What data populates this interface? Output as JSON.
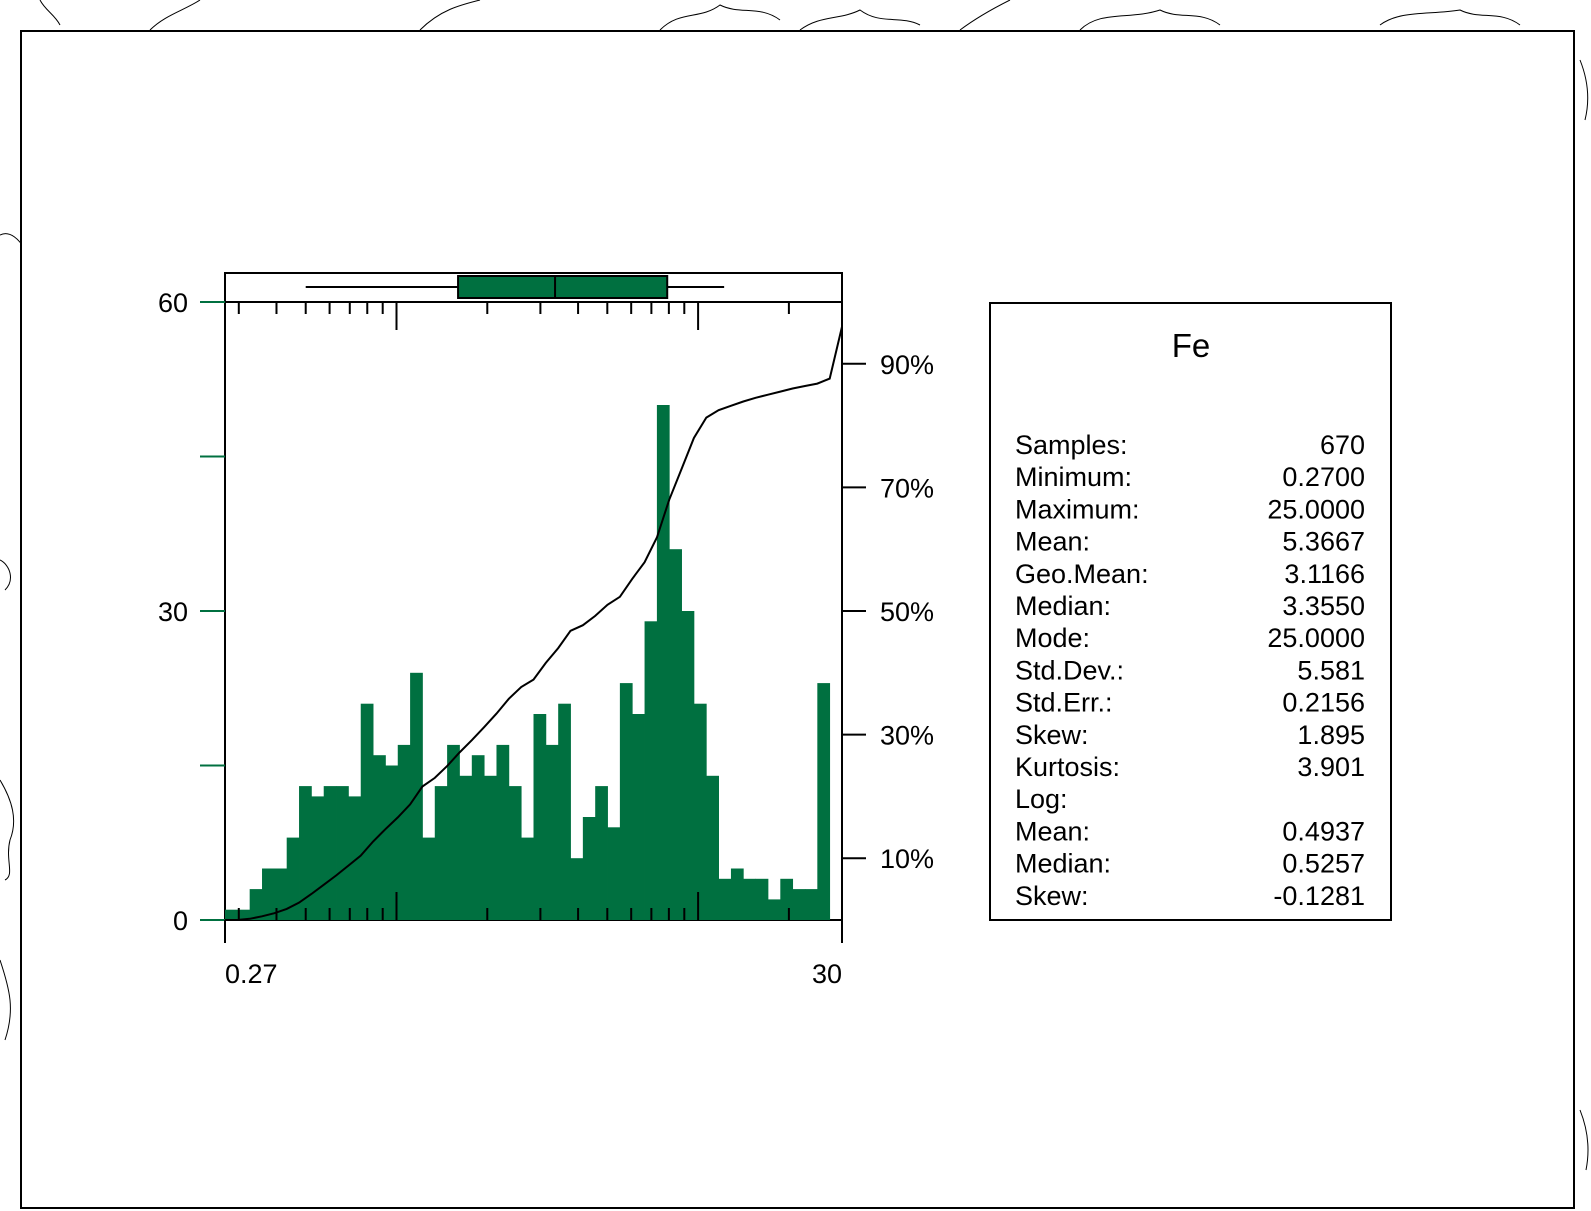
{
  "chart_data": {
    "type": "bar",
    "title": "",
    "xlabel": "",
    "ylabel": "",
    "x_scale": "log",
    "xlim": [
      0.27,
      30
    ],
    "x_tick_labels": [
      "0.27",
      "30"
    ],
    "ylim": [
      0,
      60
    ],
    "y_ticks": [
      0,
      30,
      60
    ],
    "y_tick_labels": [
      "0",
      "30",
      "60"
    ],
    "cum_pct_labels": [
      "10%",
      "30%",
      "50%",
      "70%",
      "90%"
    ],
    "bar_color": "#007040",
    "histogram": {
      "bins": 50,
      "counts": [
        1,
        1,
        3,
        5,
        5,
        8,
        13,
        12,
        13,
        13,
        12,
        21,
        16,
        15,
        17,
        24,
        8,
        13,
        17,
        14,
        16,
        14,
        17,
        13,
        8,
        20,
        17,
        21,
        6,
        10,
        13,
        9,
        23,
        20,
        29,
        50,
        36,
        30,
        21,
        14,
        4,
        5,
        4,
        4,
        2,
        4,
        3,
        3,
        23,
        0
      ]
    },
    "cumulative_percent": [
      0,
      0.2,
      0.6,
      1.1,
      1.8,
      2.8,
      4.2,
      5.7,
      7.2,
      8.8,
      10.4,
      12.7,
      14.7,
      16.6,
      18.7,
      21.6,
      23.0,
      24.9,
      27.1,
      29.1,
      31.2,
      33.4,
      35.8,
      37.7,
      38.9,
      41.6,
      44.0,
      46.8,
      47.7,
      49.2,
      51.0,
      52.3,
      55.2,
      57.9,
      61.9,
      68.0,
      73.0,
      78.0,
      81.3,
      82.5,
      83.2,
      83.9,
      84.5,
      85.0,
      85.5,
      86.0,
      86.4,
      86.8,
      87.6,
      96.0
    ]
  },
  "boxplot": {
    "whisker_low": 0.5,
    "q1": 1.6,
    "median": 3.355,
    "q3": 7.9,
    "whisker_high": 12.2
  },
  "stats": {
    "title": "Fe",
    "rows": [
      {
        "label": "Samples:",
        "value": "670"
      },
      {
        "label": "Minimum:",
        "value": "0.2700"
      },
      {
        "label": "Maximum:",
        "value": "25.0000"
      },
      {
        "label": "Mean:",
        "value": "5.3667"
      },
      {
        "label": "Geo.Mean:",
        "value": "3.1166"
      },
      {
        "label": "Median:",
        "value": "3.3550"
      },
      {
        "label": "Mode:",
        "value": "25.0000"
      },
      {
        "label": "Std.Dev.:",
        "value": "5.581"
      },
      {
        "label": "Std.Err.:",
        "value": "0.2156"
      },
      {
        "label": "Skew:",
        "value": "1.895"
      },
      {
        "label": "Kurtosis:",
        "value": "3.901"
      },
      {
        "label": "Log:",
        "value": ""
      },
      {
        "label": "Mean:",
        "value": "0.4937"
      },
      {
        "label": "Median:",
        "value": "0.5257"
      },
      {
        "label": "Skew:",
        "value": "-0.1281"
      }
    ]
  }
}
